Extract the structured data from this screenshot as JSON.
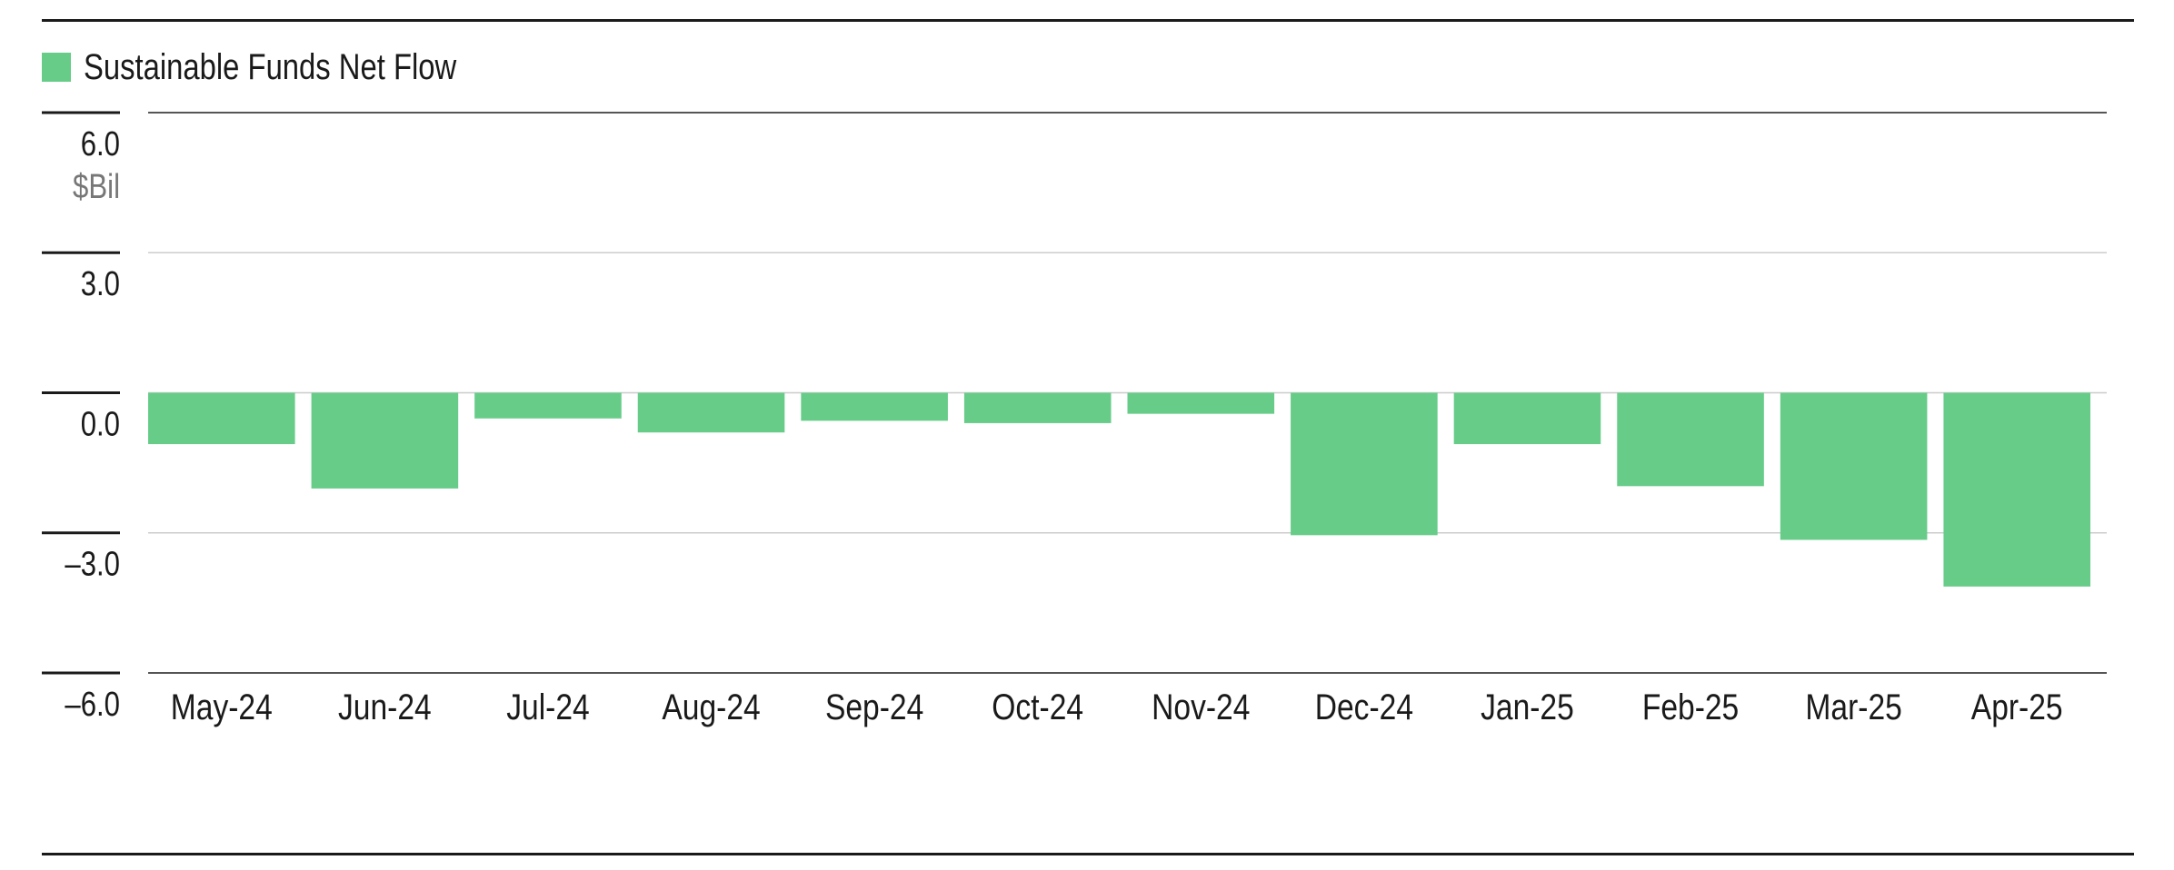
{
  "colors": {
    "bar": "#66CC88",
    "grid": "#cccccc",
    "axis": "#1a1a1a",
    "text": "#1a1a1a",
    "unit": "#777777"
  },
  "legend": {
    "label": "Sustainable Funds Net Flow"
  },
  "chart_data": {
    "type": "bar",
    "categories": [
      "May-24",
      "Jun-24",
      "Jul-24",
      "Aug-24",
      "Sep-24",
      "Oct-24",
      "Nov-24",
      "Dec-24",
      "Jan-25",
      "Feb-25",
      "Mar-25",
      "Apr-25"
    ],
    "series": [
      {
        "name": "Sustainable Funds Net Flow",
        "values": [
          -1.1,
          -2.05,
          -0.55,
          -0.85,
          -0.6,
          -0.65,
          -0.45,
          -3.05,
          -1.1,
          -2.0,
          -3.15,
          -4.15
        ]
      }
    ],
    "ylim": [
      -6.0,
      6.0
    ],
    "yticks": [
      6.0,
      3.0,
      0.0,
      -3.0,
      -6.0
    ],
    "ytick_labels": [
      "6.0",
      "3.0",
      "0.0",
      "–3.0",
      "–6.0"
    ],
    "yunit": "$Bil",
    "grid": true,
    "legend_position": "top-left"
  }
}
